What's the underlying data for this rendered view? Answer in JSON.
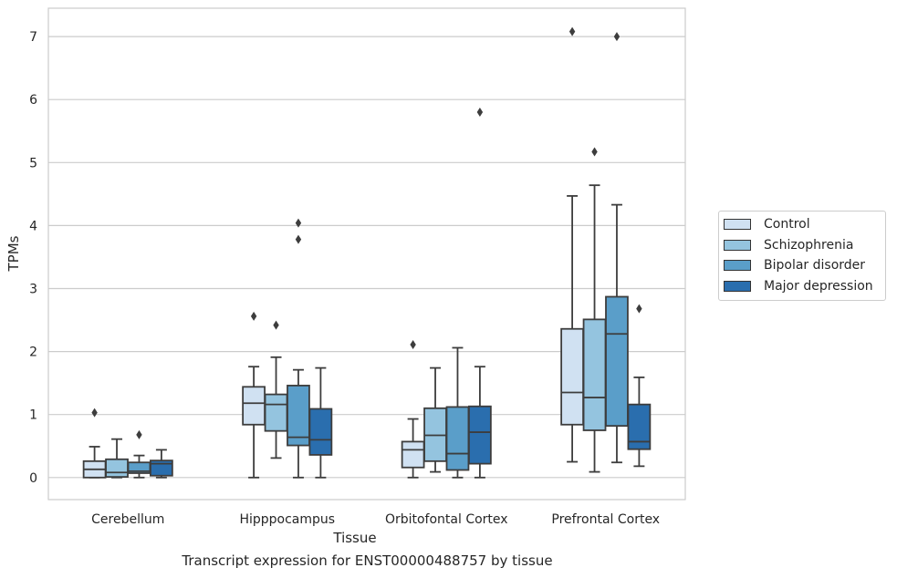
{
  "chart_data": {
    "type": "boxplot",
    "xlabel": "Tissue",
    "ylabel": "TPMs",
    "ylim": [
      -0.35,
      7.45
    ],
    "yticks": [
      0,
      1,
      2,
      3,
      4,
      5,
      6,
      7
    ],
    "grid": "horizontal",
    "legend_position": "right",
    "categories": [
      "Cerebellum",
      "Hipppocampus",
      "Orbitofontal Cortex",
      "Prefrontal Cortex"
    ],
    "series": [
      {
        "name": "Control",
        "color": "#d0e1f2",
        "boxes": [
          {
            "min": 0.0,
            "q1": 0.0,
            "median": 0.13,
            "q3": 0.26,
            "max": 0.49,
            "outliers": [
              1.03
            ]
          },
          {
            "min": 0.0,
            "q1": 0.84,
            "median": 1.18,
            "q3": 1.44,
            "max": 1.76,
            "outliers": [
              2.56
            ]
          },
          {
            "min": 0.0,
            "q1": 0.16,
            "median": 0.44,
            "q3": 0.57,
            "max": 0.93,
            "outliers": [
              2.11
            ]
          },
          {
            "min": 0.25,
            "q1": 0.84,
            "median": 1.35,
            "q3": 2.36,
            "max": 4.47,
            "outliers": [
              7.08
            ]
          }
        ]
      },
      {
        "name": "Schizophrenia",
        "color": "#94c4df",
        "boxes": [
          {
            "min": 0.0,
            "q1": 0.01,
            "median": 0.08,
            "q3": 0.29,
            "max": 0.61,
            "outliers": []
          },
          {
            "min": 0.31,
            "q1": 0.74,
            "median": 1.16,
            "q3": 1.32,
            "max": 1.91,
            "outliers": [
              2.42
            ]
          },
          {
            "min": 0.09,
            "q1": 0.26,
            "median": 0.67,
            "q3": 1.1,
            "max": 1.74,
            "outliers": []
          },
          {
            "min": 0.09,
            "q1": 0.75,
            "median": 1.27,
            "q3": 2.51,
            "max": 4.64,
            "outliers": [
              5.17
            ]
          }
        ]
      },
      {
        "name": "Bipolar disorder",
        "color": "#5a9ec9",
        "boxes": [
          {
            "min": 0.0,
            "q1": 0.07,
            "median": 0.1,
            "q3": 0.24,
            "max": 0.35,
            "outliers": [
              0.68
            ]
          },
          {
            "min": 0.0,
            "q1": 0.51,
            "median": 0.64,
            "q3": 1.46,
            "max": 1.71,
            "outliers": [
              3.78,
              4.04
            ]
          },
          {
            "min": 0.0,
            "q1": 0.12,
            "median": 0.38,
            "q3": 1.12,
            "max": 2.06,
            "outliers": []
          },
          {
            "min": 0.24,
            "q1": 0.82,
            "median": 2.28,
            "q3": 2.87,
            "max": 4.33,
            "outliers": [
              7.0
            ]
          }
        ]
      },
      {
        "name": "Major depression",
        "color": "#2a6eae",
        "boxes": [
          {
            "min": 0.0,
            "q1": 0.03,
            "median": 0.22,
            "q3": 0.27,
            "max": 0.44,
            "outliers": []
          },
          {
            "min": 0.0,
            "q1": 0.36,
            "median": 0.6,
            "q3": 1.09,
            "max": 1.74,
            "outliers": []
          },
          {
            "min": 0.0,
            "q1": 0.22,
            "median": 0.72,
            "q3": 1.13,
            "max": 1.76,
            "outliers": [
              5.8
            ]
          },
          {
            "min": 0.18,
            "q1": 0.45,
            "median": 0.57,
            "q3": 1.16,
            "max": 1.59,
            "outliers": [
              2.68
            ]
          }
        ]
      }
    ]
  },
  "caption": "Transcript expression for ENST00000488757 by tissue"
}
